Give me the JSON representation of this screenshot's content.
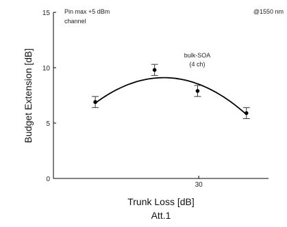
{
  "chart_data": {
    "type": "scatter",
    "title": "",
    "xlabel": "Trunk Loss [dB]",
    "xlabel_sub": "Att.1",
    "ylabel": "Budget Extension [dB]",
    "xlim": [
      17.5,
      36
    ],
    "ylim": [
      0,
      15
    ],
    "xticks": [
      30
    ],
    "yticks": [
      0,
      5,
      10,
      15
    ],
    "grid": false,
    "series": [
      {
        "name": "bulk-SOA (4 ch)",
        "marker": "filled-circle",
        "color": "#000000",
        "points": [
          {
            "x": 21.1,
            "y": 6.9,
            "err": 0.5
          },
          {
            "x": 26.2,
            "y": 9.8,
            "err": 0.5
          },
          {
            "x": 29.9,
            "y": 7.9,
            "err": 0.5
          },
          {
            "x": 34.1,
            "y": 5.9,
            "err": 0.5
          }
        ]
      }
    ],
    "fit": {
      "type": "quadratic",
      "vertex_x": 27.0,
      "vertex_y": 9.1,
      "a": -0.066,
      "x_range": [
        21.1,
        34.1
      ],
      "color": "#000000"
    },
    "annotations": {
      "top_left": [
        "Pin max +5 dBm",
        "channel"
      ],
      "top_right": "@1550 nm",
      "series_label": [
        "bulk-SOA",
        "(4 ch)"
      ]
    }
  }
}
